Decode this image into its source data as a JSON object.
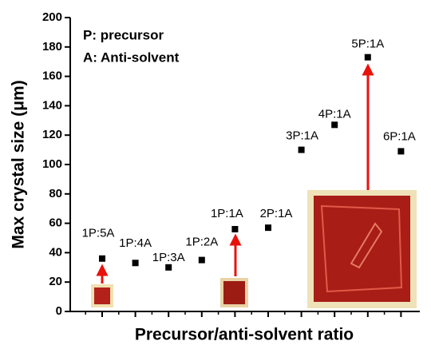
{
  "chart_data": {
    "type": "scatter",
    "annotations": [
      "P: precursor",
      "A: Anti-solvent"
    ],
    "x_label": "Precursor/anti-solvent ratio",
    "y_label": "Max crystal size (μm)",
    "categories": [
      "1P:5A",
      "1P:4A",
      "1P:3A",
      "1P:2A",
      "1P:1A",
      "2P:1A",
      "3P:1A",
      "4P:1A",
      "5P:1A",
      "6P:1A"
    ],
    "values": [
      36,
      33,
      30,
      35,
      56,
      57,
      110,
      127,
      173,
      109
    ],
    "color": "#000000",
    "ylim": [
      0,
      200
    ],
    "yticks": [
      0,
      20,
      40,
      60,
      80,
      100,
      120,
      140,
      160,
      180,
      200
    ]
  }
}
